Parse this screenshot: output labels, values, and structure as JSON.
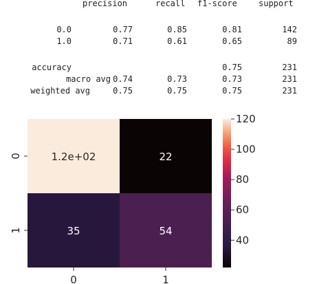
{
  "report": {
    "headers": [
      "precision",
      "recall",
      "f1-score",
      "support"
    ],
    "rows": [
      {
        "label": "0.0",
        "precision": "0.77",
        "recall": "0.85",
        "f1": "0.81",
        "support": "142"
      },
      {
        "label": "1.0",
        "precision": "0.71",
        "recall": "0.61",
        "f1": "0.65",
        "support": "89"
      },
      {
        "label": "accuracy",
        "precision": "",
        "recall": "",
        "f1": "0.75",
        "support": "231"
      },
      {
        "label": "macro avg",
        "precision": "0.74",
        "recall": "0.73",
        "f1": "0.73",
        "support": "231"
      },
      {
        "label": "weighted avg",
        "precision": "0.75",
        "recall": "0.75",
        "f1": "0.75",
        "support": "231"
      }
    ]
  },
  "chart_data": {
    "type": "heatmap",
    "title": "",
    "xlabel": "",
    "ylabel": "",
    "x_tick_labels": [
      "0",
      "1"
    ],
    "y_tick_labels": [
      "0",
      "1"
    ],
    "values": [
      [
        120,
        22
      ],
      [
        35,
        54
      ]
    ],
    "cell_labels": [
      [
        "1.2e+02",
        "22"
      ],
      [
        "35",
        "54"
      ]
    ],
    "colorbar": {
      "vmin": 22,
      "vmax": 120,
      "ticks": [
        "120",
        "100",
        "80",
        "60",
        "40"
      ],
      "colormap": "rocket"
    }
  }
}
